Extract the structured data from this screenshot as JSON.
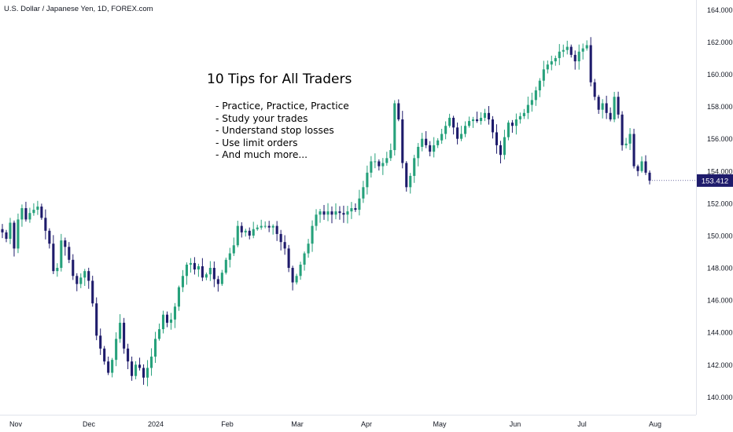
{
  "header": {
    "symbol_title": "U.S. Dollar / Japanese Yen, 1D, FOREX.com"
  },
  "annotation": {
    "headline": "10 Tips for All Traders",
    "tips": [
      "- Practice, Practice, Practice",
      "- Study your trades",
      "- Understand stop losses",
      "- Use limit orders",
      "- And much more..."
    ]
  },
  "colors": {
    "up": "#26a17b",
    "down": "#1e1b6b",
    "price_label_bg": "#1e1b6b",
    "axis_text": "#131722",
    "axis_line": "#b2b5be"
  },
  "chart_data": {
    "type": "candlestick",
    "title": "U.S. Dollar / Japanese Yen, 1D, FOREX.com",
    "ylim": [
      138.9,
      164.6
    ],
    "y_ticks": [
      "164.000",
      "162.000",
      "160.000",
      "158.000",
      "156.000",
      "154.000",
      "152.000",
      "150.000",
      "148.000",
      "146.000",
      "144.000",
      "142.000",
      "140.000"
    ],
    "x_ticks": [
      "Nov",
      "Dec",
      "2024",
      "Feb",
      "Mar",
      "Apr",
      "May",
      "Jun",
      "Jul",
      "Aug"
    ],
    "last_price": "153.412",
    "grid": false,
    "closes": [
      150.2,
      149.8,
      150.8,
      149.2,
      151.0,
      151.7,
      151.0,
      151.4,
      151.6,
      151.8,
      151.1,
      150.3,
      149.5,
      147.8,
      148.0,
      149.7,
      149.3,
      148.5,
      147.5,
      147.0,
      147.4,
      147.8,
      147.2,
      145.8,
      143.8,
      143.0,
      142.2,
      141.5,
      142.3,
      143.6,
      144.6,
      143.0,
      142.2,
      141.3,
      142.0,
      141.8,
      141.2,
      141.8,
      142.5,
      143.6,
      144.2,
      145.1,
      144.6,
      144.8,
      145.6,
      146.8,
      147.5,
      148.2,
      148.3,
      147.9,
      148.1,
      147.4,
      147.6,
      148.0,
      147.3,
      147.0,
      147.7,
      148.5,
      148.9,
      149.4,
      150.6,
      150.2,
      150.3,
      150.0,
      150.4,
      150.5,
      150.6,
      150.6,
      150.5,
      150.6,
      150.1,
      149.6,
      149.2,
      148.0,
      147.1,
      147.5,
      148.2,
      148.9,
      149.5,
      150.6,
      151.3,
      151.5,
      151.3,
      151.5,
      151.3,
      151.5,
      151.4,
      151.3,
      151.5,
      151.7,
      151.6,
      152.3,
      153.0,
      153.9,
      154.6,
      154.6,
      154.3,
      154.5,
      154.8,
      155.3,
      158.2,
      157.2,
      154.5,
      153.0,
      153.7,
      154.8,
      155.5,
      156.0,
      155.6,
      155.2,
      155.6,
      155.9,
      156.3,
      156.8,
      157.3,
      156.7,
      156.0,
      156.3,
      156.8,
      157.1,
      157.2,
      157.1,
      157.3,
      157.6,
      157.2,
      156.4,
      155.6,
      155.0,
      156.1,
      157.0,
      156.8,
      157.2,
      157.4,
      157.6,
      158.1,
      158.4,
      159.0,
      159.6,
      160.3,
      160.6,
      160.8,
      161.0,
      161.4,
      161.5,
      161.7,
      161.2,
      160.8,
      161.4,
      161.6,
      161.8,
      159.5,
      158.6,
      157.8,
      158.2,
      157.6,
      157.2,
      158.6,
      157.5,
      155.6,
      155.7,
      156.3,
      154.3,
      154.0,
      154.6,
      153.9,
      153.41
    ],
    "opens": [
      150.4,
      150.2,
      149.8,
      150.8,
      149.2,
      151.0,
      151.7,
      151.0,
      151.4,
      151.6,
      151.8,
      151.1,
      150.3,
      149.5,
      147.8,
      148.0,
      149.7,
      149.3,
      148.5,
      147.5,
      147.0,
      147.4,
      147.8,
      147.2,
      145.8,
      143.8,
      143.0,
      142.2,
      141.5,
      142.3,
      143.6,
      144.6,
      143.0,
      142.2,
      141.3,
      142.0,
      141.8,
      141.2,
      141.8,
      142.5,
      143.6,
      144.2,
      145.1,
      144.6,
      144.8,
      145.6,
      146.8,
      147.5,
      148.2,
      148.3,
      147.9,
      148.1,
      147.4,
      147.6,
      148.0,
      147.3,
      147.0,
      147.7,
      148.5,
      148.9,
      149.4,
      150.6,
      150.2,
      150.3,
      150.0,
      150.4,
      150.5,
      150.6,
      150.6,
      150.5,
      150.6,
      150.1,
      149.6,
      149.2,
      148.0,
      147.1,
      147.5,
      148.2,
      148.9,
      149.5,
      150.6,
      151.3,
      151.5,
      151.3,
      151.5,
      151.3,
      151.5,
      151.4,
      151.3,
      151.5,
      151.7,
      151.6,
      152.3,
      153.0,
      153.9,
      154.6,
      154.6,
      154.3,
      154.5,
      154.8,
      155.3,
      158.2,
      157.2,
      154.5,
      153.0,
      153.7,
      154.8,
      155.5,
      156.0,
      155.6,
      155.2,
      155.6,
      155.9,
      156.3,
      156.8,
      157.3,
      156.7,
      156.0,
      156.3,
      156.8,
      157.1,
      157.2,
      157.1,
      157.3,
      157.6,
      157.2,
      156.4,
      155.6,
      155.0,
      156.1,
      157.0,
      156.8,
      157.2,
      157.4,
      157.6,
      158.1,
      158.4,
      159.0,
      159.6,
      160.3,
      160.6,
      160.8,
      161.0,
      161.4,
      161.5,
      161.7,
      161.2,
      160.8,
      161.4,
      161.6,
      161.8,
      159.5,
      158.6,
      157.8,
      158.2,
      157.6,
      157.2,
      158.6,
      157.5,
      155.6,
      155.7,
      156.3,
      154.3,
      154.0,
      154.6,
      153.9
    ]
  }
}
